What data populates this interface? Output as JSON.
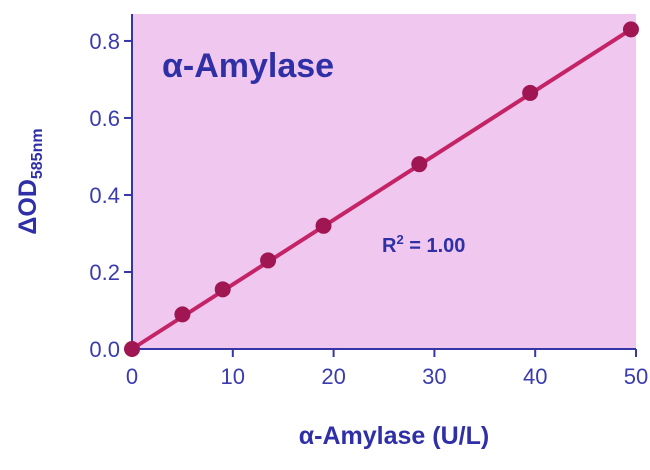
{
  "colors": {
    "plot_background": "#f0c8ef",
    "axis": "#3636a7",
    "text": "#3030a6",
    "series": "#c42366",
    "points": "#9f1653"
  },
  "chart_data": {
    "type": "scatter",
    "title": "α-Amylase",
    "xlabel": "α-Amylase (U/L)",
    "ylabel": {
      "main": "ΔOD",
      "subscript": "585nm"
    },
    "annotation": {
      "prefix": "R",
      "superscript": "2",
      "suffix": " = 1.00"
    },
    "xlim": [
      0,
      50
    ],
    "ylim": [
      0,
      0.87
    ],
    "xticks": [
      0,
      10,
      20,
      30,
      40,
      50
    ],
    "yticks": [
      0.0,
      0.2,
      0.4,
      0.6,
      0.8
    ],
    "xtick_labels": [
      "0",
      "10",
      "20",
      "30",
      "40",
      "50"
    ],
    "ytick_labels": [
      "0.0",
      "0.2",
      "0.4",
      "0.6",
      "0.8"
    ],
    "series": [
      {
        "x": [
          0,
          5,
          9,
          13.5,
          19,
          28.5,
          39.5,
          49.5
        ],
        "y": [
          0.0,
          0.09,
          0.155,
          0.23,
          0.32,
          0.48,
          0.665,
          0.83
        ]
      }
    ],
    "fit_line": {
      "x": [
        0,
        49.5
      ],
      "y": [
        0.0,
        0.83
      ]
    },
    "grid": false,
    "legend": false
  }
}
